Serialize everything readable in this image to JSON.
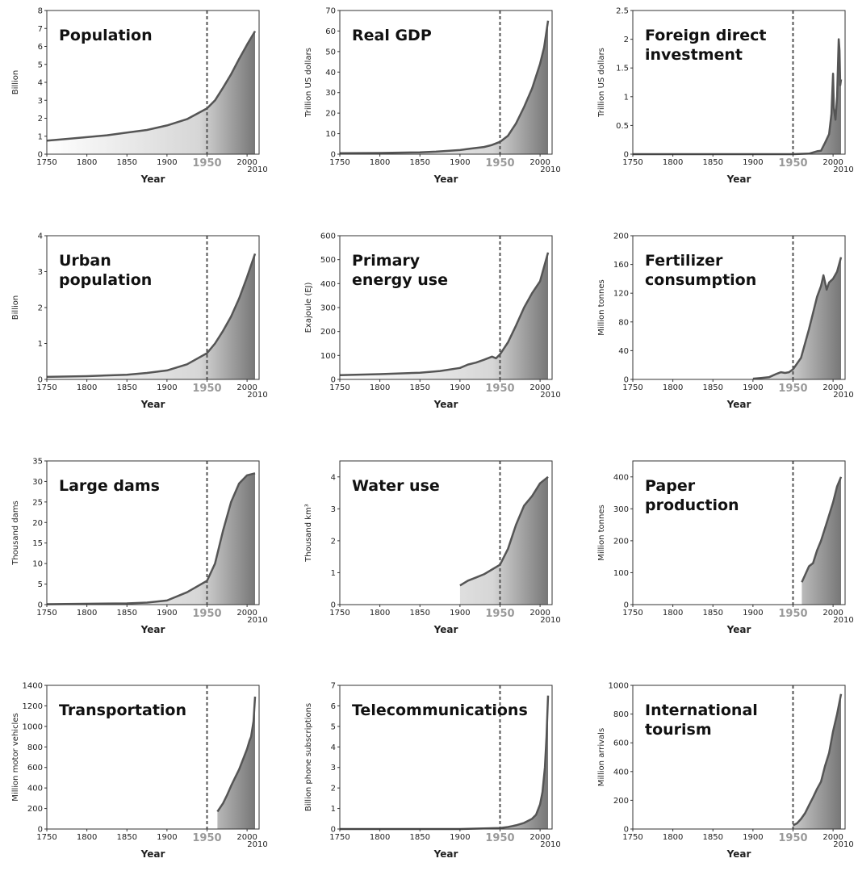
{
  "figure": {
    "colors": {
      "line": "#555555",
      "fill_light": "#f5f5f5",
      "fill_dark": "#707070",
      "axis": "#333333",
      "guide": "#555555",
      "highlight_tick": "#9a9a9a"
    }
  },
  "chart_data": [
    {
      "type": "area",
      "title": "Population",
      "title_lines": [
        "Population"
      ],
      "xlabel": "Year",
      "ylabel": "Billion",
      "xlim": [
        1750,
        2015
      ],
      "ylim": [
        0,
        8
      ],
      "yticks": [
        "0",
        "1",
        "2",
        "3",
        "4",
        "5",
        "6",
        "7",
        "8"
      ],
      "xticks": [
        "1750",
        "1800",
        "1850",
        "1900",
        "1950",
        "2000",
        "2010"
      ],
      "marker_year": 1950,
      "grid": false,
      "x": [
        1750,
        1775,
        1800,
        1825,
        1850,
        1875,
        1900,
        1925,
        1950,
        1960,
        1970,
        1980,
        1990,
        2000,
        2010
      ],
      "y": [
        0.75,
        0.85,
        0.95,
        1.05,
        1.2,
        1.35,
        1.6,
        1.95,
        2.55,
        3.0,
        3.7,
        4.45,
        5.3,
        6.1,
        6.85
      ]
    },
    {
      "type": "area",
      "title": "Real GDP",
      "title_lines": [
        "Real GDP"
      ],
      "xlabel": "Year",
      "ylabel": "Trillion US dollars",
      "xlim": [
        1750,
        2015
      ],
      "ylim": [
        0,
        70
      ],
      "yticks": [
        "0",
        "10",
        "20",
        "30",
        "40",
        "50",
        "60",
        "70"
      ],
      "xticks": [
        "1750",
        "1800",
        "1850",
        "1900",
        "1950",
        "2000",
        "2010"
      ],
      "marker_year": 1950,
      "grid": false,
      "x": [
        1750,
        1800,
        1850,
        1870,
        1900,
        1913,
        1930,
        1940,
        1950,
        1960,
        1970,
        1980,
        1990,
        2000,
        2005,
        2010
      ],
      "y": [
        0.5,
        0.6,
        0.9,
        1.2,
        2.0,
        2.7,
        3.5,
        4.5,
        6.0,
        9.0,
        15.0,
        23.0,
        32.0,
        44.0,
        52.0,
        65.0
      ]
    },
    {
      "type": "area",
      "title": "Foreign direct investment",
      "title_lines": [
        "Foreign direct",
        "investment"
      ],
      "xlabel": "Year",
      "ylabel": "Trillion US dollars",
      "xlim": [
        1750,
        2015
      ],
      "ylim": [
        0,
        2.5
      ],
      "yticks": [
        "0",
        "0.5",
        "1",
        "1.5",
        "2",
        "2.5"
      ],
      "xticks": [
        "1750",
        "1800",
        "1850",
        "1900",
        "1950",
        "2000",
        "2010"
      ],
      "marker_year": 1950,
      "grid": false,
      "x": [
        1750,
        1950,
        1970,
        1980,
        1985,
        1990,
        1995,
        1998,
        2000,
        2001,
        2003,
        2005,
        2007,
        2008,
        2009,
        2010
      ],
      "y": [
        0,
        0,
        0.01,
        0.05,
        0.06,
        0.2,
        0.35,
        0.7,
        1.4,
        0.8,
        0.6,
        1.0,
        2.0,
        1.8,
        1.2,
        1.3
      ]
    },
    {
      "type": "area",
      "title": "Urban population",
      "title_lines": [
        "Urban",
        "population"
      ],
      "xlabel": "Year",
      "ylabel": "Billion",
      "xlim": [
        1750,
        2015
      ],
      "ylim": [
        0,
        4
      ],
      "yticks": [
        "0",
        "1",
        "2",
        "3",
        "4"
      ],
      "xticks": [
        "1750",
        "1800",
        "1850",
        "1900",
        "1950",
        "2000",
        "2010"
      ],
      "marker_year": 1950,
      "grid": false,
      "x": [
        1750,
        1800,
        1850,
        1875,
        1900,
        1925,
        1950,
        1960,
        1970,
        1980,
        1990,
        2000,
        2010
      ],
      "y": [
        0.07,
        0.09,
        0.13,
        0.18,
        0.25,
        0.42,
        0.73,
        1.0,
        1.35,
        1.75,
        2.25,
        2.85,
        3.5
      ]
    },
    {
      "type": "area",
      "title": "Primary energy use",
      "title_lines": [
        "Primary",
        "energy use"
      ],
      "xlabel": "Year",
      "ylabel": "Exajoule (EJ)",
      "xlim": [
        1750,
        2015
      ],
      "ylim": [
        0,
        600
      ],
      "yticks": [
        "0",
        "100",
        "200",
        "300",
        "400",
        "500",
        "600"
      ],
      "xticks": [
        "1750",
        "1800",
        "1850",
        "1900",
        "1950",
        "2000",
        "2010"
      ],
      "marker_year": 1950,
      "grid": false,
      "x": [
        1750,
        1800,
        1850,
        1875,
        1900,
        1910,
        1920,
        1930,
        1940,
        1945,
        1950,
        1960,
        1970,
        1980,
        1990,
        2000,
        2010
      ],
      "y": [
        18,
        22,
        28,
        35,
        48,
        62,
        70,
        82,
        95,
        88,
        105,
        155,
        225,
        300,
        360,
        410,
        530
      ]
    },
    {
      "type": "area",
      "title": "Fertilizer consumption",
      "title_lines": [
        "Fertilizer",
        "consumption"
      ],
      "xlabel": "Year",
      "ylabel": "Million tonnes",
      "xlim": [
        1750,
        2015
      ],
      "ylim": [
        0,
        200
      ],
      "yticks": [
        "0",
        "40",
        "80",
        "120",
        "160",
        "200"
      ],
      "xticks": [
        "1750",
        "1800",
        "1850",
        "1900",
        "1950",
        "2000",
        "2010"
      ],
      "marker_year": 1950,
      "grid": false,
      "x": [
        1900,
        1910,
        1920,
        1930,
        1935,
        1940,
        1945,
        1950,
        1960,
        1970,
        1980,
        1985,
        1988,
        1992,
        1995,
        2000,
        2005,
        2010
      ],
      "y": [
        1,
        2,
        3,
        8,
        10,
        9,
        10,
        14,
        30,
        70,
        115,
        130,
        145,
        125,
        135,
        140,
        150,
        170
      ]
    },
    {
      "type": "area",
      "title": "Large dams",
      "title_lines": [
        "Large dams"
      ],
      "xlabel": "Year",
      "ylabel": "Thousand dams",
      "xlim": [
        1750,
        2015
      ],
      "ylim": [
        0,
        35
      ],
      "yticks": [
        "0",
        "5",
        "10",
        "15",
        "20",
        "25",
        "30",
        "35"
      ],
      "xticks": [
        "1750",
        "1800",
        "1850",
        "1900",
        "1950",
        "2000",
        "2010"
      ],
      "marker_year": 1950,
      "grid": false,
      "x": [
        1750,
        1850,
        1875,
        1900,
        1925,
        1950,
        1960,
        1970,
        1980,
        1990,
        2000,
        2010
      ],
      "y": [
        0.1,
        0.3,
        0.5,
        1.0,
        3.0,
        5.8,
        10.0,
        18.0,
        25.0,
        29.5,
        31.5,
        32.0
      ]
    },
    {
      "type": "area",
      "title": "Water use",
      "title_lines": [
        "Water use"
      ],
      "xlabel": "Year",
      "ylabel": "Thousand km³",
      "xlim": [
        1750,
        2015
      ],
      "ylim": [
        0,
        4.5
      ],
      "yticks": [
        "0",
        "1",
        "2",
        "3",
        "4"
      ],
      "xticks": [
        "1750",
        "1800",
        "1850",
        "1900",
        "1950",
        "2000",
        "2010"
      ],
      "marker_year": 1950,
      "grid": false,
      "x": [
        1900,
        1910,
        1920,
        1930,
        1940,
        1950,
        1960,
        1970,
        1980,
        1990,
        2000,
        2010
      ],
      "y": [
        0.6,
        0.75,
        0.85,
        0.95,
        1.1,
        1.25,
        1.75,
        2.5,
        3.1,
        3.4,
        3.8,
        4.0
      ]
    },
    {
      "type": "area",
      "title": "Paper production",
      "title_lines": [
        "Paper",
        "production"
      ],
      "xlabel": "Year",
      "ylabel": "Million tonnes",
      "xlim": [
        1750,
        2015
      ],
      "ylim": [
        0,
        450
      ],
      "yticks": [
        "0",
        "100",
        "200",
        "300",
        "400"
      ],
      "xticks": [
        "1750",
        "1800",
        "1850",
        "1900",
        "1950",
        "2000",
        "2010"
      ],
      "marker_year": 1950,
      "grid": false,
      "x": [
        1961,
        1970,
        1975,
        1980,
        1985,
        1990,
        1995,
        2000,
        2005,
        2010
      ],
      "y": [
        70,
        120,
        130,
        170,
        200,
        240,
        280,
        320,
        370,
        400
      ]
    },
    {
      "type": "area",
      "title": "Transportation",
      "title_lines": [
        "Transportation"
      ],
      "xlabel": "Year",
      "ylabel": "Million motor vehicles",
      "xlim": [
        1750,
        2015
      ],
      "ylim": [
        0,
        1400
      ],
      "yticks": [
        "0",
        "200",
        "400",
        "600",
        "800",
        "1000",
        "1200",
        "1400"
      ],
      "xticks": [
        "1750",
        "1800",
        "1850",
        "1900",
        "1950",
        "2000",
        "2010"
      ],
      "marker_year": 1950,
      "grid": false,
      "x": [
        1963,
        1970,
        1975,
        1980,
        1985,
        1990,
        1995,
        2000,
        2003,
        2005,
        2008,
        2010
      ],
      "y": [
        170,
        250,
        330,
        420,
        500,
        580,
        680,
        780,
        860,
        900,
        1050,
        1290
      ]
    },
    {
      "type": "area",
      "title": "Telecommunications",
      "title_lines": [
        "Telecommunications"
      ],
      "xlabel": "Year",
      "ylabel": "Billion phone subscriptions",
      "xlim": [
        1750,
        2015
      ],
      "ylim": [
        0,
        7
      ],
      "yticks": [
        "0",
        "1",
        "2",
        "3",
        "4",
        "5",
        "6",
        "7"
      ],
      "xticks": [
        "1750",
        "1800",
        "1850",
        "1900",
        "1950",
        "2000",
        "2010"
      ],
      "marker_year": 1950,
      "grid": false,
      "x": [
        1750,
        1900,
        1950,
        1960,
        1970,
        1980,
        1990,
        1995,
        2000,
        2003,
        2006,
        2008,
        2010
      ],
      "y": [
        0,
        0,
        0.05,
        0.1,
        0.18,
        0.3,
        0.5,
        0.7,
        1.2,
        1.8,
        3.0,
        4.5,
        6.5
      ]
    },
    {
      "type": "area",
      "title": "International tourism",
      "title_lines": [
        "International",
        "tourism"
      ],
      "xlabel": "Year",
      "ylabel": "Million arrivals",
      "xlim": [
        1750,
        2015
      ],
      "ylim": [
        0,
        1000
      ],
      "yticks": [
        "0",
        "200",
        "400",
        "600",
        "800",
        "1000"
      ],
      "xticks": [
        "1750",
        "1800",
        "1850",
        "1900",
        "1950",
        "2000",
        "2010"
      ],
      "marker_year": 1950,
      "grid": false,
      "x": [
        1950,
        1955,
        1960,
        1965,
        1970,
        1975,
        1980,
        1985,
        1990,
        1995,
        2000,
        2005,
        2010
      ],
      "y": [
        25,
        40,
        70,
        110,
        165,
        220,
        280,
        330,
        440,
        530,
        680,
        800,
        940
      ]
    }
  ]
}
